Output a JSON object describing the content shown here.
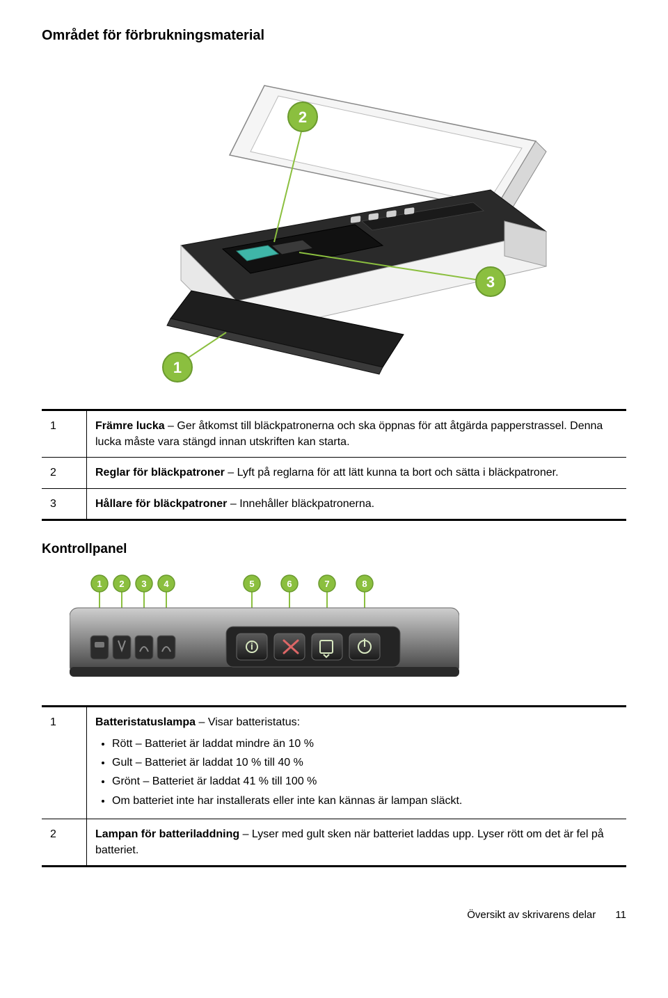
{
  "heading1": "Området för förbrukningsmaterial",
  "heading2": "Kontrollpanel",
  "colors": {
    "callout_fill": "#8bbf3f",
    "callout_stroke": "#6a9a2e",
    "leader_line": "#8bbf3f",
    "printer_light": "#f5f5f5",
    "printer_mid": "#d8d8d8",
    "printer_dark": "#3a3a3a",
    "printer_black": "#1e1e1e",
    "cartridge_teal": "#3fb6a8",
    "panel_bg_light": "#b9b9b9",
    "panel_bg_dark": "#4a4a4a",
    "button_dark": "#2d2d2d"
  },
  "table1": {
    "rows": [
      {
        "num": "1",
        "lead": "Främre lucka",
        "text": " – Ger åtkomst till bläckpatronerna och ska öppnas för att åtgärda papperstrassel. Denna lucka måste vara stängd innan utskriften kan starta."
      },
      {
        "num": "2",
        "lead": "Reglar för bläckpatroner",
        "text": " – Lyft på reglarna för att lätt kunna ta bort och sätta i bläckpatroner."
      },
      {
        "num": "3",
        "lead": "Hållare för bläckpatroner",
        "text": " – Innehåller bläckpatronerna."
      }
    ]
  },
  "table2": {
    "rows": [
      {
        "num": "1",
        "lead": "Batteristatuslampa",
        "text": " – Visar batteristatus:",
        "bullets": [
          "Rött – Batteriet är laddat mindre än 10 %",
          "Gult – Batteriet är laddat 10 % till 40 %",
          "Grönt – Batteriet är laddat 41 % till 100 %",
          "Om batteriet inte har installerats eller inte kan kännas är lampan släckt."
        ]
      },
      {
        "num": "2",
        "lead": "Lampan för batteriladdning",
        "text": " – Lyser med gult sken när batteriet laddas upp. Lyser rött om det är fel på batteriet."
      }
    ]
  },
  "footer": {
    "text": "Översikt av skrivarens delar",
    "page": "11"
  },
  "panel_callouts": [
    "1",
    "2",
    "3",
    "4",
    "5",
    "6",
    "7",
    "8"
  ]
}
